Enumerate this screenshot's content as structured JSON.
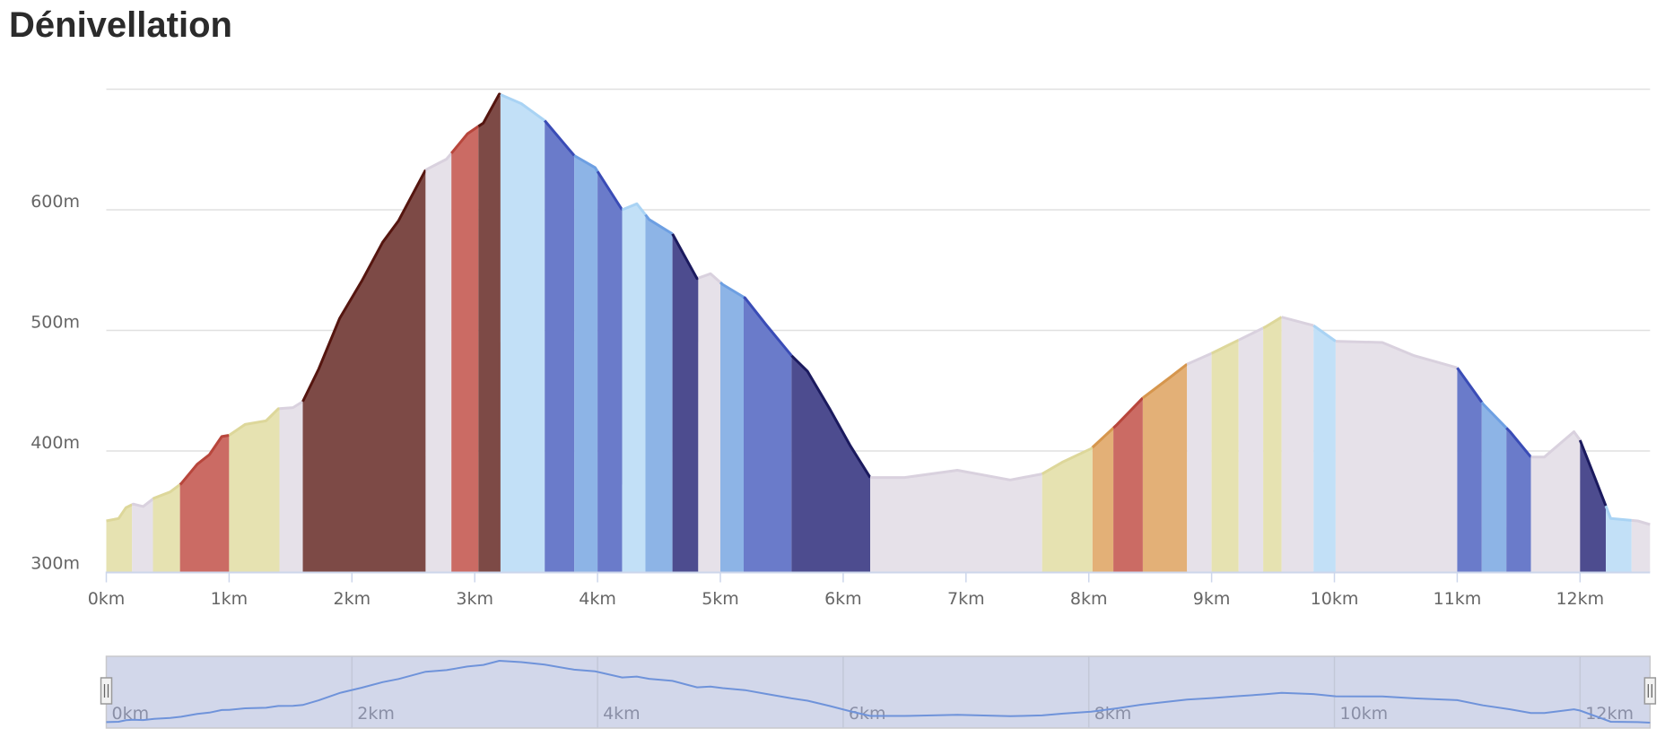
{
  "title": "Dénivellation",
  "chart_data": {
    "type": "area",
    "title": "Dénivellation",
    "xlabel": "",
    "ylabel": "",
    "xlim": [
      0,
      12.57
    ],
    "ylim": [
      290,
      700
    ],
    "grid": true,
    "y_ticks": [
      {
        "value": 300,
        "label": "300m"
      },
      {
        "value": 400,
        "label": "400m"
      },
      {
        "value": 500,
        "label": "500m"
      },
      {
        "value": 600,
        "label": "600m"
      },
      {
        "value": 700,
        "label": ""
      }
    ],
    "x_ticks": [
      {
        "value": 0,
        "label": "0km"
      },
      {
        "value": 1,
        "label": "1km"
      },
      {
        "value": 2,
        "label": "2km"
      },
      {
        "value": 3,
        "label": "3km"
      },
      {
        "value": 4,
        "label": "4km"
      },
      {
        "value": 5,
        "label": "5km"
      },
      {
        "value": 6,
        "label": "6km"
      },
      {
        "value": 7,
        "label": "7km"
      },
      {
        "value": 8,
        "label": "8km"
      },
      {
        "value": 9,
        "label": "9km"
      },
      {
        "value": 10,
        "label": "10km"
      },
      {
        "value": 11,
        "label": "11km"
      },
      {
        "value": 12,
        "label": "12km"
      }
    ],
    "navigator_ticks": [
      {
        "value": 0,
        "label": "0km"
      },
      {
        "value": 2,
        "label": "2km"
      },
      {
        "value": 4,
        "label": "4km"
      },
      {
        "value": 6,
        "label": "6km"
      },
      {
        "value": 8,
        "label": "8km"
      },
      {
        "value": 10,
        "label": "10km"
      },
      {
        "value": 12,
        "label": "12km"
      }
    ],
    "x": [
      0,
      0.1,
      0.16,
      0.22,
      0.3,
      0.39,
      0.52,
      0.61,
      0.74,
      0.84,
      0.94,
      1.0,
      1.13,
      1.3,
      1.4,
      1.52,
      1.6,
      1.73,
      1.9,
      2.08,
      2.25,
      2.38,
      2.6,
      2.77,
      2.94,
      3.07,
      3.2,
      3.38,
      3.57,
      3.81,
      3.98,
      4.2,
      4.32,
      4.42,
      4.61,
      4.81,
      4.92,
      5.02,
      5.2,
      5.37,
      5.58,
      5.71,
      5.89,
      6.06,
      6.22,
      6.5,
      6.93,
      7.36,
      7.62,
      7.79,
      8.02,
      8.23,
      8.44,
      8.66,
      8.8,
      9.0,
      9.22,
      9.44,
      9.57,
      9.83,
      10.01,
      10.39,
      10.65,
      11.0,
      11.21,
      11.43,
      11.6,
      11.71,
      11.95,
      12.0,
      12.12,
      12.25,
      12.47,
      12.57
    ],
    "elevation": [
      342,
      344,
      353,
      356,
      354,
      361,
      366,
      373,
      389,
      397,
      412,
      413,
      422,
      425,
      435,
      436,
      441,
      468,
      510,
      541,
      573,
      591,
      633,
      642,
      663,
      672,
      696,
      688,
      674,
      645,
      635,
      600,
      605,
      592,
      580,
      543,
      547,
      538,
      527,
      505,
      479,
      466,
      435,
      404,
      378,
      378,
      384,
      376,
      381,
      391,
      402,
      422,
      444,
      461,
      472,
      481,
      492,
      503,
      511,
      504,
      491,
      490,
      479,
      469,
      439,
      416,
      395,
      395,
      416,
      409,
      378,
      344,
      342,
      339
    ],
    "segments": [
      {
        "from": 0,
        "to": 0.21,
        "class": "yellow"
      },
      {
        "from": 0.21,
        "to": 0.38,
        "class": "grey"
      },
      {
        "from": 0.38,
        "to": 0.6,
        "class": "yellow"
      },
      {
        "from": 0.6,
        "to": 1.0,
        "class": "red"
      },
      {
        "from": 1.0,
        "to": 1.41,
        "class": "yellow"
      },
      {
        "from": 1.41,
        "to": 1.6,
        "class": "grey"
      },
      {
        "from": 1.6,
        "to": 2.6,
        "class": "brown"
      },
      {
        "from": 2.6,
        "to": 2.81,
        "class": "grey"
      },
      {
        "from": 2.81,
        "to": 3.03,
        "class": "red"
      },
      {
        "from": 3.03,
        "to": 3.21,
        "class": "brown"
      },
      {
        "from": 3.21,
        "to": 3.57,
        "class": "lightblue"
      },
      {
        "from": 3.57,
        "to": 3.81,
        "class": "blue"
      },
      {
        "from": 3.81,
        "to": 4.0,
        "class": "midblue"
      },
      {
        "from": 4.0,
        "to": 4.2,
        "class": "blue"
      },
      {
        "from": 4.2,
        "to": 4.39,
        "class": "lightblue"
      },
      {
        "from": 4.39,
        "to": 4.61,
        "class": "midblue"
      },
      {
        "from": 4.61,
        "to": 4.82,
        "class": "navy"
      },
      {
        "from": 4.82,
        "to": 5.0,
        "class": "grey"
      },
      {
        "from": 5.0,
        "to": 5.19,
        "class": "midblue"
      },
      {
        "from": 5.19,
        "to": 5.58,
        "class": "blue"
      },
      {
        "from": 5.58,
        "to": 6.22,
        "class": "navy"
      },
      {
        "from": 6.22,
        "to": 7.62,
        "class": "grey"
      },
      {
        "from": 7.62,
        "to": 8.03,
        "class": "yellow"
      },
      {
        "from": 8.03,
        "to": 8.2,
        "class": "orange"
      },
      {
        "from": 8.2,
        "to": 8.44,
        "class": "red"
      },
      {
        "from": 8.44,
        "to": 8.8,
        "class": "orange"
      },
      {
        "from": 8.8,
        "to": 9.0,
        "class": "grey"
      },
      {
        "from": 9.0,
        "to": 9.22,
        "class": "yellow"
      },
      {
        "from": 9.22,
        "to": 9.42,
        "class": "grey"
      },
      {
        "from": 9.42,
        "to": 9.57,
        "class": "yellow"
      },
      {
        "from": 9.57,
        "to": 9.83,
        "class": "grey"
      },
      {
        "from": 9.83,
        "to": 10.01,
        "class": "lightblue"
      },
      {
        "from": 10.01,
        "to": 11.0,
        "class": "grey"
      },
      {
        "from": 11.0,
        "to": 11.2,
        "class": "blue"
      },
      {
        "from": 11.2,
        "to": 11.4,
        "class": "midblue"
      },
      {
        "from": 11.4,
        "to": 11.6,
        "class": "blue"
      },
      {
        "from": 11.6,
        "to": 12.0,
        "class": "grey"
      },
      {
        "from": 12.0,
        "to": 12.21,
        "class": "navy"
      },
      {
        "from": 12.21,
        "to": 12.42,
        "class": "lightblue"
      },
      {
        "from": 12.42,
        "to": 12.57,
        "class": "grey"
      }
    ],
    "colors": {
      "yellow": {
        "fill": "#e6e2b1",
        "stroke": "#ddd79a"
      },
      "grey": {
        "fill": "#e6e1e9",
        "stroke": "#d9d1de"
      },
      "red": {
        "fill": "#cb6b64",
        "stroke": "#b8463c"
      },
      "brown": {
        "fill": "#7d4a46",
        "stroke": "#55150f"
      },
      "lightblue": {
        "fill": "#c2e0f7",
        "stroke": "#a9d3f4"
      },
      "blue": {
        "fill": "#6a7bca",
        "stroke": "#3a4cb6"
      },
      "midblue": {
        "fill": "#8db4e6",
        "stroke": "#6d9fe2"
      },
      "navy": {
        "fill": "#4d4c8f",
        "stroke": "#1b1a5e"
      },
      "orange": {
        "fill": "#e3b077",
        "stroke": "#d6964d"
      }
    },
    "navigator": {
      "fill": "#d2d7ea",
      "line": "#6f93da"
    }
  }
}
